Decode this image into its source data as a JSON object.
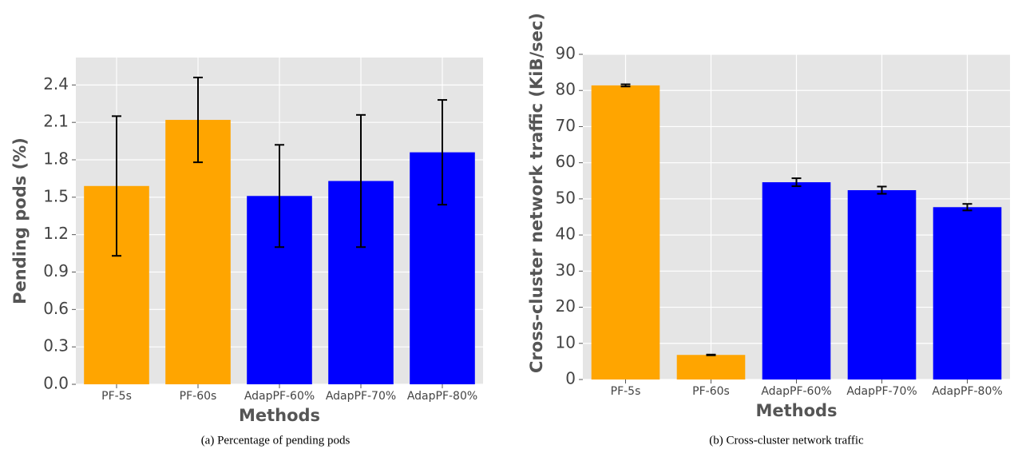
{
  "chart_data": [
    {
      "type": "bar",
      "caption": "(a) Percentage of pending pods",
      "xlabel": "Methods",
      "ylabel": "Pending pods (%)",
      "categories": [
        "PF-5s",
        "PF-60s",
        "AdapPF-60%",
        "AdapPF-70%",
        "AdapPF-80%"
      ],
      "values": [
        1.59,
        2.12,
        1.51,
        1.63,
        1.86
      ],
      "errors": [
        0.56,
        0.34,
        0.41,
        0.53,
        0.42
      ],
      "colors": [
        "#ffa500",
        "#ffa500",
        "#0000ff",
        "#0000ff",
        "#0000ff"
      ],
      "ylim": [
        0,
        2.62
      ],
      "yticks": [
        {
          "value": 0,
          "label": "0.0"
        },
        0.3,
        0.6,
        0.9,
        1.2,
        1.5,
        1.8,
        2.1,
        2.4
      ],
      "grid": true
    },
    {
      "type": "bar",
      "caption": "(b) Cross-cluster network traffic",
      "xlabel": "Methods",
      "ylabel": "Cross-cluster network traffic (KiB/sec)",
      "categories": [
        "PF-5s",
        "PF-60s",
        "AdapPF-60%",
        "AdapPF-70%",
        "AdapPF-80%"
      ],
      "values": [
        81.4,
        6.8,
        54.6,
        52.4,
        47.7
      ],
      "errors": [
        0.3,
        0.1,
        1.1,
        1.0,
        0.9
      ],
      "colors": [
        "#ffa500",
        "#ffa500",
        "#0000ff",
        "#0000ff",
        "#0000ff"
      ],
      "ylim": [
        0,
        90
      ],
      "yticks": [
        0,
        10,
        20,
        30,
        40,
        50,
        60,
        70,
        80,
        90
      ],
      "grid": true
    }
  ]
}
